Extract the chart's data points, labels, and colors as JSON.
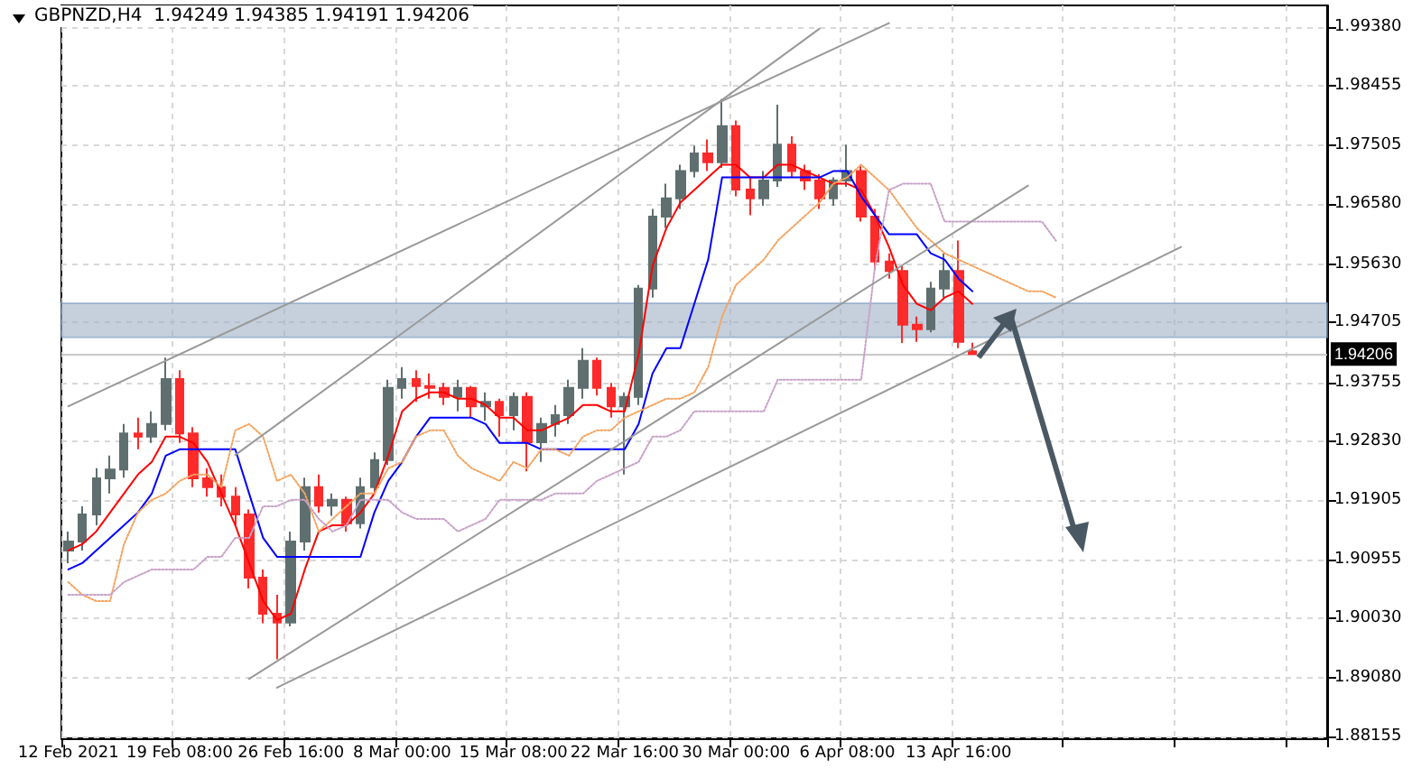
{
  "chart_data": {
    "type": "candlestick",
    "title": "GBPNZD,H4  1.94249 1.94385 1.94191 1.94206",
    "categories": [
      "12 Feb 2021",
      null,
      null,
      null,
      null,
      null,
      null,
      null,
      "19 Feb 08:00",
      null,
      null,
      null,
      null,
      null,
      null,
      null,
      "26 Feb 16:00",
      null,
      null,
      null,
      null,
      null,
      null,
      null,
      "8 Mar 00:00",
      null,
      null,
      null,
      null,
      null,
      null,
      null,
      "15 Mar 08:00",
      null,
      null,
      null,
      null,
      null,
      null,
      null,
      "22 Mar 16:00",
      null,
      null,
      null,
      null,
      null,
      null,
      null,
      "30 Mar 00:00",
      null,
      null,
      null,
      null,
      null,
      null,
      null,
      "6 Apr 08:00",
      null,
      null,
      null,
      null,
      null,
      null,
      null,
      "13 Apr 16:00",
      null,
      null,
      null,
      null,
      null,
      null,
      null,
      null,
      null,
      null,
      null,
      null,
      null,
      null,
      null,
      null,
      null,
      null,
      null,
      null,
      null,
      null,
      null,
      null,
      null,
      null
    ],
    "ylim": [
      1.8813,
      1.9972
    ],
    "yticks": [
      1.88155,
      {
        "value": 1.8908,
        "label": "1.89080"
      },
      {
        "value": 1.9003,
        "label": "1.90030"
      },
      1.90955,
      1.91905,
      {
        "value": 1.9283,
        "label": "1.92830"
      },
      1.93755,
      1.94705,
      {
        "value": 1.9563,
        "label": "1.95630"
      },
      {
        "value": 1.9658,
        "label": "1.96580"
      },
      1.97505,
      1.98455,
      {
        "value": 1.9938,
        "label": "1.99380"
      }
    ],
    "grid": true,
    "series": [
      {
        "type": "candlestick",
        "colors": [
          "#5f6f6f",
          "#5f6f6f",
          "#5f6f6f",
          "#5f6f6f",
          "#5f6f6f",
          "#ff2a2a",
          "#5f6f6f",
          "#5f6f6f",
          "#ff2a2a",
          "#ff2a2a",
          "#ff2a2a",
          "#ff2a2a",
          "#ff2a2a",
          "#ff2a2a",
          "#ff2a2a",
          "#ff2a2a",
          "#5f6f6f",
          "#5f6f6f",
          "#ff2a2a",
          "#5f6f6f",
          "#ff2a2a",
          "#5f6f6f",
          "#5f6f6f",
          "#5f6f6f",
          "#5f6f6f",
          "#ff2a2a",
          "#ff2a2a",
          "#ff2a2a",
          "#5f6f6f",
          "#ff2a2a",
          "#5f6f6f",
          "#ff2a2a",
          "#5f6f6f",
          "#ff2a2a",
          "#5f6f6f",
          "#5f6f6f",
          "#5f6f6f",
          "#5f6f6f",
          "#ff2a2a",
          "#ff2a2a",
          "#5f6f6f",
          "#5f6f6f",
          "#5f6f6f",
          "#5f6f6f",
          "#5f6f6f",
          "#5f6f6f",
          "#ff2a2a",
          "#5f6f6f",
          "#ff2a2a",
          "#ff2a2a",
          "#5f6f6f",
          "#5f6f6f",
          "#ff2a2a",
          "#ff2a2a",
          "#ff2a2a",
          "#5f6f6f",
          "#5f6f6f",
          "#ff2a2a",
          "#ff2a2a",
          "#ff2a2a",
          "#ff2a2a",
          "#ff2a2a",
          "#5f6f6f",
          "#5f6f6f",
          "#ff2a2a",
          "#ff2a2a",
          null,
          null,
          null,
          null,
          null,
          null,
          null,
          null,
          null,
          null,
          null,
          null,
          null,
          null,
          null,
          null,
          null,
          null,
          null,
          null,
          null,
          null,
          null,
          null,
          null
        ],
        "ohlc": [
          [
            1.911,
            1.914,
            1.909,
            1.9124
          ],
          [
            1.9124,
            1.918,
            1.911,
            1.9167
          ],
          [
            1.9167,
            1.924,
            1.915,
            1.9224
          ],
          [
            1.9224,
            1.926,
            1.92,
            1.9238
          ],
          [
            1.9238,
            1.931,
            1.9225,
            1.9295
          ],
          [
            1.9295,
            1.932,
            1.927,
            1.929
          ],
          [
            1.929,
            1.933,
            1.928,
            1.931
          ],
          [
            1.931,
            1.9415,
            1.93,
            1.9381
          ],
          [
            1.9381,
            1.9395,
            1.928,
            1.9295
          ],
          [
            1.9295,
            1.9305,
            1.921,
            1.9224
          ],
          [
            1.9224,
            1.924,
            1.9195,
            1.921
          ],
          [
            1.921,
            1.923,
            1.918,
            1.9195
          ],
          [
            1.9195,
            1.921,
            1.915,
            1.9167
          ],
          [
            1.9167,
            1.9175,
            1.905,
            1.9067
          ],
          [
            1.9067,
            1.908,
            1.8995,
            1.901
          ],
          [
            1.901,
            1.904,
            1.8938,
            1.8996
          ],
          [
            1.8996,
            1.914,
            1.899,
            1.9124
          ],
          [
            1.9124,
            1.9225,
            1.911,
            1.921
          ],
          [
            1.921,
            1.923,
            1.917,
            1.9181
          ],
          [
            1.9181,
            1.92,
            1.9165,
            1.919
          ],
          [
            1.919,
            1.9195,
            1.914,
            1.9153
          ],
          [
            1.9153,
            1.9225,
            1.9145,
            1.921
          ],
          [
            1.921,
            1.9265,
            1.92,
            1.9253
          ],
          [
            1.9253,
            1.938,
            1.9245,
            1.9367
          ],
          [
            1.9367,
            1.94,
            1.935,
            1.9381
          ],
          [
            1.9381,
            1.9395,
            1.9345,
            1.937
          ],
          [
            1.937,
            1.939,
            1.935,
            1.9367
          ],
          [
            1.9367,
            1.9375,
            1.934,
            1.9353
          ],
          [
            1.9353,
            1.938,
            1.933,
            1.9367
          ],
          [
            1.9367,
            1.937,
            1.932,
            1.9338
          ],
          [
            1.9338,
            1.936,
            1.9315,
            1.9345
          ],
          [
            1.9345,
            1.935,
            1.929,
            1.9324
          ],
          [
            1.9324,
            1.936,
            1.93,
            1.9353
          ],
          [
            1.9353,
            1.936,
            1.9235,
            1.9281
          ],
          [
            1.9281,
            1.932,
            1.925,
            1.931
          ],
          [
            1.931,
            1.934,
            1.929,
            1.9324
          ],
          [
            1.9324,
            1.938,
            1.931,
            1.9367
          ],
          [
            1.9367,
            1.943,
            1.935,
            1.941
          ],
          [
            1.941,
            1.9415,
            1.9355,
            1.9367
          ],
          [
            1.9367,
            1.9375,
            1.932,
            1.9338
          ],
          [
            1.9338,
            1.936,
            1.923,
            1.9353
          ],
          [
            1.9353,
            1.953,
            1.934,
            1.9524
          ],
          [
            1.9524,
            1.965,
            1.951,
            1.9638
          ],
          [
            1.9638,
            1.969,
            1.962,
            1.9667
          ],
          [
            1.9667,
            1.972,
            1.965,
            1.971
          ],
          [
            1.971,
            1.975,
            1.97,
            1.9738
          ],
          [
            1.9738,
            1.976,
            1.971,
            1.9724
          ],
          [
            1.9724,
            1.9824,
            1.9715,
            1.9781
          ],
          [
            1.9781,
            1.979,
            1.967,
            1.9681
          ],
          [
            1.9681,
            1.97,
            1.964,
            1.9667
          ],
          [
            1.9667,
            1.971,
            1.9655,
            1.9695
          ],
          [
            1.9695,
            1.9815,
            1.9685,
            1.9752
          ],
          [
            1.9752,
            1.9765,
            1.97,
            1.971
          ],
          [
            1.971,
            1.972,
            1.968,
            1.9695
          ],
          [
            1.9695,
            1.9705,
            1.965,
            1.9667
          ],
          [
            1.9667,
            1.97,
            1.9655,
            1.9695
          ],
          [
            1.9695,
            1.9752,
            1.9685,
            1.971
          ],
          [
            1.971,
            1.972,
            1.963,
            1.9638
          ],
          [
            1.9638,
            1.965,
            1.9555,
            1.9567
          ],
          [
            1.9567,
            1.958,
            1.954,
            1.9552
          ],
          [
            1.9552,
            1.956,
            1.9438,
            1.9467
          ],
          [
            1.9467,
            1.948,
            1.944,
            1.946
          ],
          [
            1.946,
            1.9535,
            1.9455,
            1.9524
          ],
          [
            1.9524,
            1.958,
            1.951,
            1.9552
          ],
          [
            1.9552,
            1.96,
            1.943,
            1.944
          ],
          [
            1.94249,
            1.94385,
            1.94191,
            1.94206
          ],
          null,
          null,
          null,
          null,
          null,
          null,
          null,
          null,
          null,
          null,
          null,
          null,
          null,
          null,
          null,
          null,
          null,
          null,
          null,
          null,
          null,
          null,
          null,
          null,
          null
        ]
      },
      {
        "type": "line",
        "color": "#ff0000",
        "values": [
          1.911,
          1.912,
          1.914,
          1.917,
          1.92,
          1.923,
          1.925,
          1.929,
          1.929,
          1.928,
          1.925,
          1.92,
          1.915,
          1.909,
          1.903,
          1.9,
          1.901,
          1.908,
          1.914,
          1.915,
          1.915,
          1.917,
          1.92,
          1.926,
          1.933,
          1.935,
          1.936,
          1.936,
          1.935,
          1.935,
          1.934,
          1.932,
          1.932,
          1.93,
          1.93,
          1.931,
          1.932,
          1.934,
          1.934,
          1.933,
          1.933,
          1.942,
          1.956,
          1.962,
          1.966,
          1.968,
          1.97,
          1.972,
          1.972,
          1.97,
          1.97,
          1.972,
          1.972,
          1.971,
          1.97,
          1.969,
          1.969,
          1.968,
          1.964,
          1.959,
          1.953,
          1.95,
          1.949,
          1.951,
          1.952,
          1.95,
          null,
          null,
          null,
          null,
          null,
          null,
          null,
          null,
          null,
          null,
          null,
          null,
          null,
          null,
          null,
          null,
          null,
          null,
          null,
          null,
          null,
          null,
          null,
          null,
          null
        ]
      },
      {
        "type": "line",
        "color": "#0000ff",
        "values": [
          1.908,
          1.909,
          1.911,
          1.913,
          1.915,
          1.917,
          1.92,
          1.926,
          1.927,
          1.927,
          1.927,
          1.927,
          1.927,
          1.92,
          1.913,
          1.91,
          1.91,
          1.91,
          1.91,
          1.91,
          1.91,
          1.91,
          1.917,
          1.922,
          1.925,
          1.929,
          1.932,
          1.932,
          1.932,
          1.932,
          1.931,
          1.928,
          1.928,
          1.928,
          1.927,
          1.927,
          1.927,
          1.927,
          1.927,
          1.927,
          1.927,
          1.931,
          1.939,
          1.943,
          1.943,
          1.95,
          1.957,
          1.97,
          1.97,
          1.97,
          1.97,
          1.97,
          1.97,
          1.97,
          1.97,
          1.971,
          1.971,
          1.967,
          1.964,
          1.961,
          1.961,
          1.961,
          1.958,
          1.957,
          1.954,
          1.952,
          null,
          null,
          null,
          null,
          null,
          null,
          null,
          null,
          null,
          null,
          null,
          null,
          null,
          null,
          null,
          null,
          null,
          null,
          null,
          null,
          null,
          null,
          null,
          null,
          null
        ]
      },
      {
        "type": "line",
        "color": "#f4a460",
        "line_style": "dotted",
        "values": [
          1.906,
          1.904,
          1.903,
          1.903,
          1.912,
          1.917,
          1.919,
          1.92,
          1.922,
          1.923,
          1.923,
          1.921,
          1.93,
          1.931,
          1.929,
          1.922,
          1.923,
          1.92,
          1.914,
          1.916,
          1.918,
          1.92,
          1.92,
          1.924,
          1.925,
          1.929,
          1.93,
          1.93,
          1.926,
          1.924,
          1.923,
          1.922,
          1.925,
          1.924,
          1.927,
          1.927,
          1.926,
          1.929,
          1.93,
          1.93,
          1.932,
          1.933,
          1.934,
          1.935,
          1.935,
          1.936,
          1.94,
          1.948,
          1.953,
          1.955,
          1.957,
          1.96,
          1.962,
          1.964,
          1.966,
          1.969,
          1.97,
          1.972,
          1.97,
          1.968,
          1.965,
          1.962,
          1.96,
          1.958,
          1.957,
          1.956,
          1.955,
          1.954,
          1.953,
          1.952,
          1.952,
          1.951,
          null,
          null,
          null,
          null,
          null,
          null,
          null,
          null,
          null,
          null,
          null,
          null,
          null,
          null,
          null,
          null,
          null,
          null,
          null
        ]
      },
      {
        "type": "line",
        "color": "#c8a2c8",
        "line_style": "dotted",
        "values": [
          1.904,
          1.904,
          1.904,
          1.904,
          1.906,
          1.907,
          1.908,
          1.908,
          1.908,
          1.908,
          1.91,
          1.91,
          1.913,
          1.913,
          1.918,
          1.918,
          1.919,
          1.919,
          1.916,
          1.914,
          1.915,
          1.919,
          1.919,
          1.919,
          1.917,
          1.916,
          1.916,
          1.916,
          1.914,
          1.915,
          1.916,
          1.919,
          1.919,
          1.919,
          1.919,
          1.92,
          1.92,
          1.92,
          1.922,
          1.923,
          1.924,
          1.925,
          1.929,
          1.929,
          1.93,
          1.933,
          1.933,
          1.933,
          1.933,
          1.933,
          1.933,
          1.938,
          1.938,
          1.938,
          1.938,
          1.938,
          1.938,
          1.938,
          1.956,
          1.968,
          1.969,
          1.969,
          1.969,
          1.963,
          1.963,
          1.963,
          1.963,
          1.963,
          1.963,
          1.963,
          1.963,
          1.96,
          null,
          null,
          null,
          null,
          null,
          null,
          null,
          null,
          null,
          null,
          null,
          null,
          null,
          null,
          null,
          null,
          null,
          null,
          null
        ]
      },
      {
        "type": "line",
        "color": "#999999",
        "values": [
          1.9338,
          null,
          null,
          null,
          null,
          null,
          null,
          null,
          null,
          null,
          null,
          null,
          null,
          null,
          null,
          null,
          null,
          null,
          null,
          null,
          null,
          null,
          null,
          null,
          null,
          null,
          null,
          null,
          null,
          null,
          null,
          null,
          null,
          null,
          null,
          null,
          null,
          null,
          null,
          null,
          null,
          null,
          null,
          null,
          null,
          null,
          null,
          null,
          null,
          null,
          null,
          null,
          null,
          null,
          null,
          null,
          null,
          null,
          null,
          1.9944,
          null,
          null,
          null,
          null,
          null,
          null,
          null,
          null,
          null,
          null,
          null,
          null,
          null,
          null,
          null,
          null,
          null,
          null,
          null,
          null,
          null,
          null,
          null,
          null,
          null,
          null,
          null,
          null,
          null,
          null,
          null
        ]
      },
      {
        "type": "line",
        "color": "#999999",
        "values": [
          null,
          null,
          null,
          null,
          null,
          null,
          null,
          null,
          null,
          null,
          null,
          null,
          1.9261,
          null,
          null,
          null,
          null,
          null,
          null,
          null,
          null,
          null,
          null,
          null,
          null,
          null,
          null,
          null,
          null,
          null,
          null,
          null,
          null,
          null,
          null,
          null,
          null,
          null,
          null,
          null,
          null,
          null,
          null,
          null,
          null,
          null,
          null,
          null,
          null,
          null,
          null,
          null,
          null,
          null,
          1.9935,
          null,
          null,
          null,
          null,
          null,
          null,
          null,
          null,
          null,
          null,
          null,
          null,
          null,
          null,
          null,
          null,
          null,
          null,
          null,
          null,
          null,
          null,
          null,
          null,
          null,
          null,
          null,
          null,
          null,
          null,
          null,
          null,
          null,
          null,
          null,
          null
        ]
      },
      {
        "type": "line",
        "color": "#999999",
        "values": [
          null,
          null,
          null,
          null,
          null,
          null,
          null,
          null,
          null,
          null,
          null,
          null,
          null,
          1.8907,
          null,
          null,
          null,
          null,
          null,
          null,
          null,
          null,
          null,
          null,
          null,
          null,
          null,
          null,
          null,
          null,
          null,
          null,
          null,
          null,
          null,
          null,
          null,
          null,
          null,
          null,
          null,
          null,
          null,
          null,
          null,
          null,
          null,
          null,
          null,
          null,
          null,
          null,
          null,
          null,
          null,
          null,
          null,
          null,
          null,
          null,
          null,
          null,
          null,
          null,
          null,
          null,
          null,
          null,
          null,
          1.9687,
          null,
          null,
          null,
          null,
          null,
          null,
          null,
          null,
          null,
          null,
          null,
          null,
          null,
          null,
          null,
          null,
          null,
          null,
          null,
          null,
          null
        ]
      },
      {
        "type": "line",
        "color": "#999999",
        "values": [
          null,
          null,
          null,
          null,
          null,
          null,
          null,
          null,
          null,
          null,
          null,
          null,
          null,
          null,
          null,
          1.8893,
          null,
          null,
          null,
          null,
          null,
          null,
          null,
          null,
          null,
          null,
          null,
          null,
          null,
          null,
          null,
          null,
          null,
          null,
          null,
          null,
          null,
          null,
          null,
          null,
          null,
          null,
          null,
          null,
          null,
          null,
          null,
          null,
          null,
          null,
          null,
          null,
          null,
          null,
          null,
          null,
          null,
          null,
          null,
          null,
          null,
          null,
          null,
          null,
          null,
          null,
          null,
          null,
          null,
          null,
          null,
          null,
          null,
          null,
          null,
          null,
          null,
          null,
          null,
          null,
          1.959,
          null,
          null,
          null,
          null,
          null,
          null,
          null,
          null,
          null,
          null
        ]
      }
    ],
    "ref_lines": [
      {
        "axis": "y",
        "value": 1.94206,
        "label": "1.94206",
        "color": "#c8c8c8"
      }
    ],
    "bands": [
      {
        "axis": "y",
        "from": 1.9447,
        "to": 1.9501,
        "color": "#9fb1c4"
      }
    ]
  }
}
